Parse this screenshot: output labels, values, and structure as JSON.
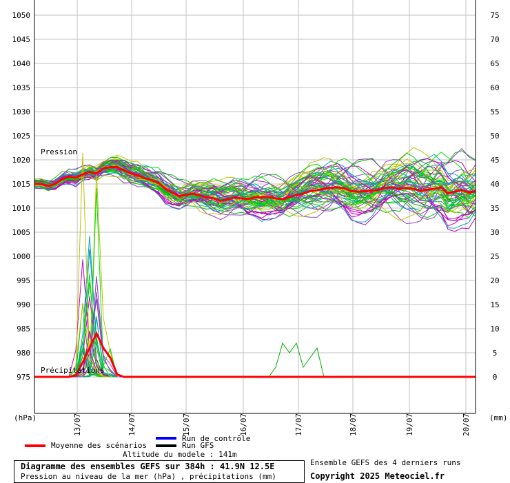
{
  "chart_data": {
    "type": "line",
    "left_axis": {
      "unit": "(hPa)",
      "ticks": [
        1050,
        1045,
        1040,
        1035,
        1030,
        1025,
        1020,
        1015,
        1010,
        1005,
        1000,
        995,
        990,
        985,
        980,
        975
      ],
      "range": [
        975,
        1050
      ]
    },
    "right_axis": {
      "unit": "(mm)",
      "ticks": [
        75,
        70,
        65,
        60,
        55,
        50,
        45,
        40,
        35,
        30,
        25,
        20,
        15,
        10,
        5,
        0
      ],
      "range": [
        0,
        75
      ]
    },
    "x_ticks": [
      "13/07",
      "14/07",
      "15/07",
      "16/07",
      "17/07",
      "18/07",
      "19/07",
      "20/07"
    ],
    "annotations": {
      "pressure": "Pression",
      "precip": "Précipitations"
    },
    "series": [
      {
        "name": "Moyenne des scénarios",
        "color": "#ff0000",
        "pressure_hpa": [
          1015,
          1015,
          1014.5,
          1015,
          1016,
          1016.5,
          1016.3,
          1017,
          1017.5,
          1017.2,
          1018.2,
          1018.5,
          1018.5,
          1017.8,
          1017.2,
          1016.8,
          1016.2,
          1015.8,
          1015.2,
          1014,
          1013.2,
          1012.5,
          1012.8,
          1013,
          1012.6,
          1012.2,
          1012,
          1011.5,
          1011.8,
          1012.2,
          1012,
          1011.9,
          1012.2,
          1012.2,
          1012.3,
          1012,
          1011.8,
          1012.3,
          1012.7,
          1013,
          1013.5,
          1013.7,
          1014,
          1014.2,
          1014.3,
          1014.1,
          1013.5,
          1013.4,
          1013.5,
          1013.6,
          1013.8,
          1014.2,
          1014.3,
          1014,
          1014.2,
          1014,
          1013.6,
          1013.8,
          1014,
          1014.3,
          1013,
          1013.4,
          1013.8,
          1013.2,
          1013.5
        ],
        "precip_mm": [
          0,
          0,
          0,
          0,
          0,
          0,
          0.3,
          3,
          6,
          9,
          6,
          4,
          0.5,
          0,
          0,
          0,
          0,
          0,
          0,
          0,
          0,
          0,
          0,
          0,
          0,
          0,
          0,
          0,
          0,
          0,
          0,
          0,
          0,
          0,
          0,
          0,
          0,
          0,
          0,
          0,
          0,
          0,
          0,
          0,
          0,
          0,
          0,
          0,
          0,
          0,
          0,
          0,
          0,
          0,
          0,
          0,
          0,
          0,
          0,
          0,
          0,
          0,
          0,
          0,
          0
        ]
      },
      {
        "name": "Run de contrôle",
        "color": "#0000ff"
      },
      {
        "name": "Run GFS",
        "color": "#000000"
      }
    ],
    "ensemble_members": "grey/green/magenta/cyan/yellow thin lines around the mean"
  },
  "legend": {
    "mean": "Moyenne des scénarios",
    "control": "Run de contrôle",
    "gfs": "Run GFS"
  },
  "altitude": "Altitude du modele : 141m",
  "footer": {
    "title": "Diagramme des ensembles GEFS sur 384h : 41.9N 12.5E",
    "subtitle": "Pression au niveau de la mer (hPa) , précipitations (mm)",
    "runs": "Ensemble GEFS des 4 derniers runs",
    "copyright": "Copyright 2025 Meteociel.fr"
  },
  "colors": {
    "grid": "#c0c0c0",
    "mean": "#ff0000",
    "control": "#0000ff",
    "gfs": "#000000",
    "members": [
      "#00c000",
      "#c000c0",
      "#00a0c0",
      "#c0c000",
      "#00e000",
      "#9040c0"
    ]
  }
}
